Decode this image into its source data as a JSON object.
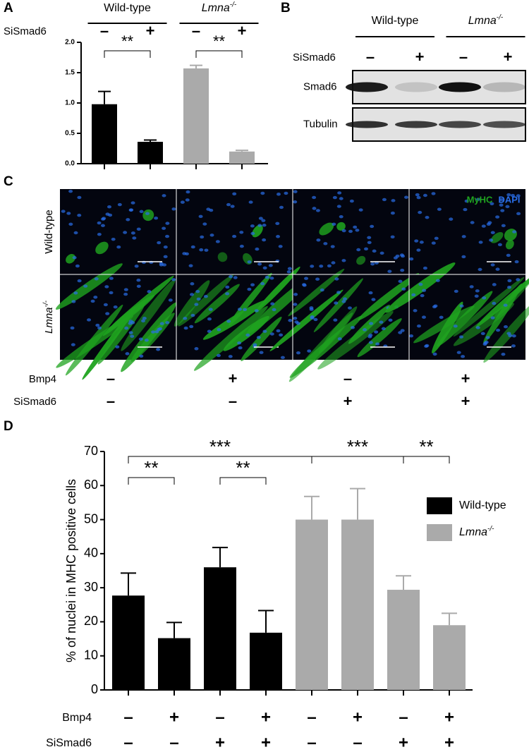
{
  "panel_labels": [
    "A",
    "B",
    "C",
    "D"
  ],
  "chart_data": [
    {
      "type": "bar",
      "groups": [
        {
          "name": "Wild-type"
        },
        {
          "name": "Lmna",
          "superscript": "-/-"
        }
      ],
      "categories": [
        null,
        null,
        null,
        null
      ],
      "values": [
        0.98,
        0.36,
        1.57,
        0.2
      ],
      "errors": [
        0.21,
        0.03,
        0.05,
        0.02
      ],
      "colors": [
        "#000000",
        "#000000",
        "#aaaaaa",
        "#aaaaaa"
      ],
      "ylim": [
        0,
        2.0
      ],
      "yticks": [
        {
          "value": 0,
          "label": "0.0"
        },
        0.5,
        {
          "value": 1,
          "label": "1.0"
        },
        1.5,
        {
          "value": 2,
          "label": "2.0"
        }
      ],
      "conditions": [
        {
          "name": "SiSmad6",
          "signs": [
            "–",
            "+",
            "–",
            "+"
          ]
        }
      ],
      "significance": [
        {
          "from": 0,
          "to": 1,
          "text": "**"
        },
        {
          "from": 2,
          "to": 3,
          "text": "**"
        }
      ]
    },
    {
      "type": "bar",
      "ylabel": "% of nuclei in MHC positive cells",
      "categories": [
        null,
        null,
        null,
        null,
        null,
        null,
        null,
        null
      ],
      "series": [
        {
          "name": "Wild-type",
          "color": "#000000",
          "values": [
            27.7,
            15.2,
            36,
            16.8,
            null,
            null,
            null,
            null
          ],
          "errors": [
            6.6,
            4.6,
            5.8,
            6.5,
            null,
            null,
            null,
            null
          ]
        },
        {
          "name": "Lmna",
          "superscript": "-/-",
          "color": "#aaaaaa",
          "values": [
            null,
            null,
            null,
            null,
            50,
            50,
            29.4,
            19
          ],
          "errors": [
            null,
            null,
            null,
            null,
            6.8,
            9.1,
            4.1,
            3.5
          ]
        }
      ],
      "ylim": [
        0,
        70
      ],
      "yticks": [
        0,
        10,
        20,
        30,
        40,
        50,
        60,
        70
      ],
      "legend": "right",
      "conditions": [
        {
          "name": "Bmp4",
          "signs": [
            "–",
            "+",
            "–",
            "+",
            "–",
            "+",
            "–",
            "+"
          ]
        },
        {
          "name": "SiSmad6",
          "signs": [
            "–",
            "–",
            "+",
            "+",
            "–",
            "–",
            "+",
            "+"
          ]
        }
      ],
      "significance": [
        {
          "from": 0,
          "to": 1,
          "text": "**"
        },
        {
          "from": 2,
          "to": 3,
          "text": "**"
        },
        {
          "from": 0,
          "to": 4,
          "text": "***"
        },
        {
          "from": 4,
          "to": 6,
          "text": "***"
        },
        {
          "from": 6,
          "to": 7,
          "text": "**"
        }
      ]
    }
  ],
  "blot": {
    "groups": [
      {
        "name": "Wild-type"
      },
      {
        "name": "Lmna",
        "superscript": "-/-"
      }
    ],
    "condition": {
      "name": "SiSmad6",
      "signs": [
        "–",
        "+",
        "–",
        "+"
      ]
    },
    "rows": [
      "Smad6",
      "Tubulin"
    ]
  },
  "micrograph": {
    "rows": [
      {
        "name": "Wild-type"
      },
      {
        "name": "Lmna",
        "superscript": "-/-"
      }
    ],
    "channels": [
      {
        "name": "MyHC",
        "color": "#1fa31f"
      },
      {
        "name": "DAPI",
        "color": "#2a6ee8"
      }
    ],
    "conditions": [
      {
        "name": "Bmp4",
        "signs": [
          "–",
          "+",
          "–",
          "+"
        ]
      },
      {
        "name": "SiSmad6",
        "signs": [
          "–",
          "–",
          "+",
          "+"
        ]
      }
    ]
  }
}
